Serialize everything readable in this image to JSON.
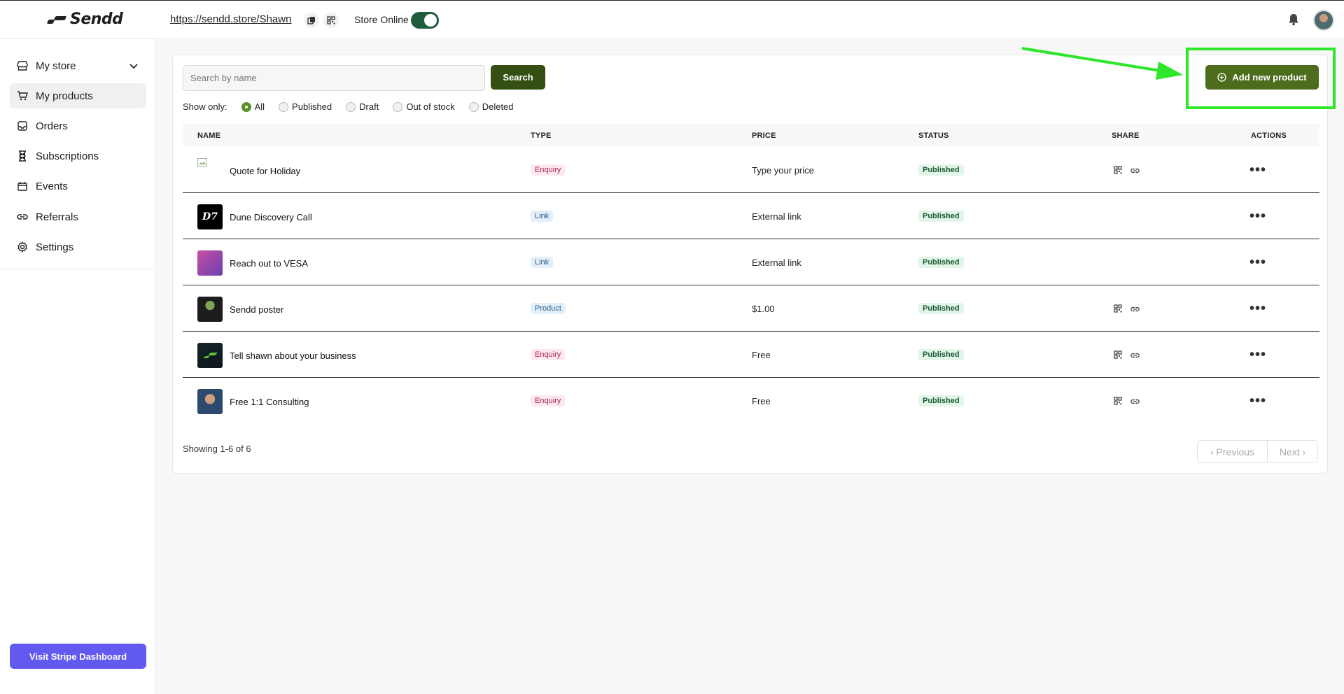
{
  "header": {
    "logo_text": "Sendd",
    "store_url": "https://sendd.store/Shawn",
    "store_online_label": "Store Online",
    "store_online": true
  },
  "sidebar": {
    "items": [
      {
        "label": "My store",
        "icon": "store-icon"
      },
      {
        "label": "My products",
        "icon": "cart-icon"
      },
      {
        "label": "Orders",
        "icon": "inbox-icon"
      },
      {
        "label": "Subscriptions",
        "icon": "hourglass-icon"
      },
      {
        "label": "Events",
        "icon": "calendar-icon"
      },
      {
        "label": "Referrals",
        "icon": "link-icon"
      },
      {
        "label": "Settings",
        "icon": "gear-icon"
      }
    ],
    "stripe_button": "Visit Stripe Dashboard"
  },
  "toolbar": {
    "search_placeholder": "Search by name",
    "search_button": "Search",
    "add_button": "Add new product",
    "filter_label": "Show only:",
    "filters": [
      "All",
      "Published",
      "Draft",
      "Out of stock",
      "Deleted"
    ],
    "selected_filter": "All"
  },
  "table": {
    "headers": {
      "name": "NAME",
      "type": "TYPE",
      "price": "PRICE",
      "status": "STATUS",
      "share": "SHARE",
      "actions": "ACTIONS"
    },
    "rows": [
      {
        "name": "Quote for Holiday",
        "type": "Enquiry",
        "price": "Type your price",
        "status": "Published"
      },
      {
        "name": "Dune Discovery Call",
        "type": "Link",
        "price": "External link",
        "status": "Published"
      },
      {
        "name": "Reach out to VESA",
        "type": "Link",
        "price": "External link",
        "status": "Published"
      },
      {
        "name": "Sendd poster",
        "type": "Product",
        "price": "$1.00",
        "status": "Published"
      },
      {
        "name": "Tell shawn about your business",
        "type": "Enquiry",
        "price": "Free",
        "status": "Published"
      },
      {
        "name": "Free 1:1 Consulting",
        "type": "Enquiry",
        "price": "Free",
        "status": "Published"
      }
    ]
  },
  "pagination": {
    "showing": "Showing 1-6 of 6",
    "previous": "Previous",
    "next": "Next"
  },
  "colors": {
    "primary_green": "#344e14",
    "add_button_green": "#4d6c1c",
    "stripe_purple": "#6259ef",
    "highlight_green": "#2ee62a"
  }
}
